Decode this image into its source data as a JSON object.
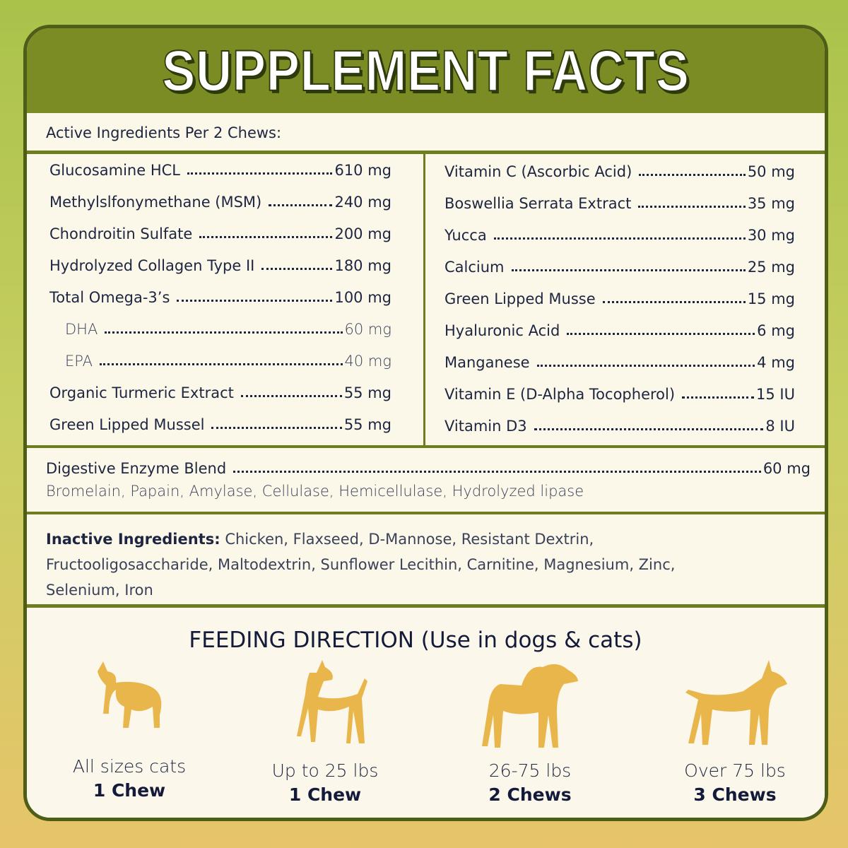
{
  "title": "SUPPLEMENT FACTS",
  "active_header": "Active Ingredients Per 2 Chews:",
  "left_ingredients": [
    {
      "name": "Glucosamine HCL",
      "amount": "610 mg"
    },
    {
      "name": "Methylslfonymethane (MSM)",
      "amount": "240 mg"
    },
    {
      "name": "Chondroitin Sulfate",
      "amount": "200 mg"
    },
    {
      "name": "Hydrolyzed Collagen Type II",
      "amount": "180 mg"
    },
    {
      "name": "Total Omega-3’s",
      "amount": "100 mg",
      "sub": [
        {
          "name": "DHA",
          "amount": "60 mg"
        },
        {
          "name": "EPA",
          "amount": "40 mg"
        }
      ]
    },
    {
      "name": "Organic Turmeric Extract",
      "amount": "55 mg"
    },
    {
      "name": "Green Lipped Mussel",
      "amount": "55 mg"
    }
  ],
  "right_ingredients": [
    {
      "name": "Vitamin C (Ascorbic Acid)",
      "amount": "50 mg"
    },
    {
      "name": "Boswellia Serrata Extract",
      "amount": "35 mg"
    },
    {
      "name": "Yucca",
      "amount": "30 mg"
    },
    {
      "name": "Calcium",
      "amount": "25 mg"
    },
    {
      "name": "Green Lipped Musse",
      "amount": "15 mg"
    },
    {
      "name": "Hyaluronic Acid",
      "amount": "6 mg"
    },
    {
      "name": "Manganese",
      "amount": "4 mg"
    },
    {
      "name": "Vitamin E (D-Alpha Tocopherol)",
      "amount": "15 IU"
    },
    {
      "name": "Vitamin D3",
      "amount": "8 IU"
    }
  ],
  "enzyme": {
    "name": "Digestive Enzyme Blend",
    "amount": "60 mg",
    "components": "Bromelain, Papain, Amylase, Cellulase, Hemicellulase, Hydrolyzed lipase"
  },
  "inactive": {
    "label": "Inactive Ingredients:",
    "text": "Chicken, Flaxseed, D-Mannose, Resistant Dextrin, Fructooligosaccharide,  Maltodextrin, Sunflower Lecithin, Carnitine, Magnesium, Zinc, Selenium, Iron"
  },
  "feeding": {
    "title": "FEEDING DIRECTION (Use in dogs & cats)",
    "items": [
      {
        "size": "All sizes cats",
        "dose": "1 Chew"
      },
      {
        "size": "Up to 25 lbs",
        "dose": "1 Chew"
      },
      {
        "size": "26-75 lbs",
        "dose": "2 Chews"
      },
      {
        "size": "Over 75 lbs",
        "dose": "3 Chews"
      }
    ]
  }
}
